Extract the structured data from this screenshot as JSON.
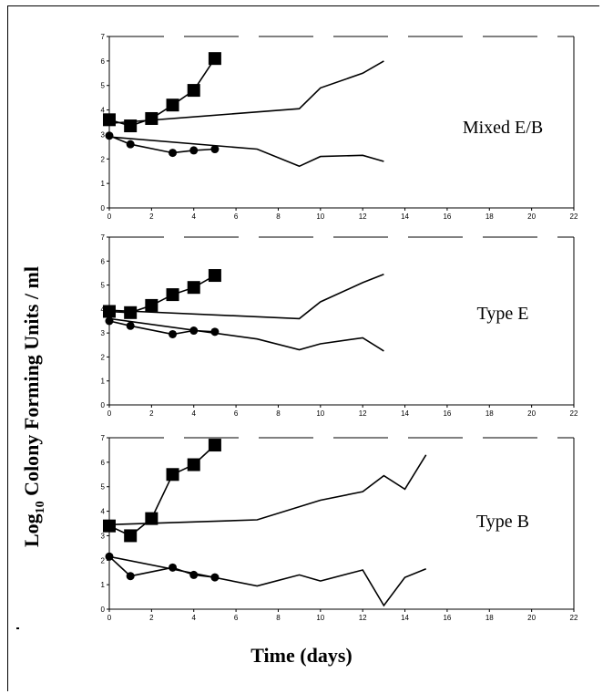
{
  "figure": {
    "y_label_prefix": "Log",
    "y_label_subscript": "10",
    "y_label_rest": " Colony Forming Units / ml",
    "x_label": "Time (days)"
  },
  "chart_data": [
    {
      "type": "line",
      "title": "Mixed E/B",
      "xlim": [
        0,
        22
      ],
      "ylim": [
        0,
        7
      ],
      "x_ticks": [
        0,
        2,
        4,
        6,
        8,
        10,
        12,
        14,
        16,
        18,
        20,
        22
      ],
      "y_ticks": [
        0,
        1,
        2,
        3,
        4,
        5,
        6,
        7
      ],
      "series": [
        {
          "marker": "square",
          "x": [
            0,
            1,
            2,
            3,
            4,
            5
          ],
          "y": [
            3.6,
            3.35,
            3.65,
            4.2,
            4.8,
            6.1
          ]
        },
        {
          "marker": "none",
          "x": [
            0,
            9,
            10,
            12,
            13
          ],
          "y": [
            3.45,
            4.05,
            4.9,
            5.5,
            6.0
          ]
        },
        {
          "marker": "circle",
          "x": [
            0,
            1,
            3,
            4,
            5
          ],
          "y": [
            2.95,
            2.6,
            2.25,
            2.35,
            2.4
          ]
        },
        {
          "marker": "none",
          "x": [
            0,
            7,
            9,
            10,
            12,
            13
          ],
          "y": [
            2.9,
            2.4,
            1.7,
            2.1,
            2.15,
            1.9
          ]
        }
      ]
    },
    {
      "type": "line",
      "title": "Type E",
      "xlim": [
        0,
        22
      ],
      "ylim": [
        0,
        7
      ],
      "x_ticks": [
        0,
        2,
        4,
        6,
        8,
        10,
        12,
        14,
        16,
        18,
        20,
        22
      ],
      "y_ticks": [
        0,
        1,
        2,
        3,
        4,
        5,
        6,
        7
      ],
      "series": [
        {
          "marker": "square",
          "x": [
            0,
            1,
            2,
            3,
            4,
            5
          ],
          "y": [
            3.9,
            3.85,
            4.15,
            4.6,
            4.9,
            5.4
          ]
        },
        {
          "marker": "none",
          "x": [
            0,
            9,
            10,
            12,
            13
          ],
          "y": [
            3.95,
            3.6,
            4.3,
            5.1,
            5.45
          ]
        },
        {
          "marker": "circle",
          "x": [
            0,
            1,
            3,
            4,
            5
          ],
          "y": [
            3.5,
            3.3,
            2.95,
            3.1,
            3.05
          ]
        },
        {
          "marker": "none",
          "x": [
            0,
            7,
            9,
            10,
            12,
            13
          ],
          "y": [
            3.6,
            2.75,
            2.3,
            2.55,
            2.8,
            2.25
          ]
        }
      ]
    },
    {
      "type": "line",
      "title": "Type B",
      "xlim": [
        0,
        22
      ],
      "ylim": [
        0,
        7
      ],
      "x_ticks": [
        0,
        2,
        4,
        6,
        8,
        10,
        12,
        14,
        16,
        18,
        20,
        22
      ],
      "y_ticks": [
        0,
        1,
        2,
        3,
        4,
        5,
        6,
        7
      ],
      "series": [
        {
          "marker": "square",
          "x": [
            0,
            1,
            2,
            3,
            4,
            5
          ],
          "y": [
            3.4,
            3.0,
            3.7,
            5.5,
            5.9,
            6.7
          ]
        },
        {
          "marker": "none",
          "x": [
            0,
            7,
            10,
            12,
            13,
            14,
            15
          ],
          "y": [
            3.45,
            3.65,
            4.45,
            4.8,
            5.45,
            4.9,
            6.3
          ]
        },
        {
          "marker": "circle",
          "x": [
            0,
            1,
            3,
            4,
            5
          ],
          "y": [
            2.15,
            1.35,
            1.7,
            1.4,
            1.3
          ]
        },
        {
          "marker": "none",
          "x": [
            0,
            7,
            9,
            10,
            12,
            13,
            14,
            15
          ],
          "y": [
            2.15,
            0.95,
            1.4,
            1.15,
            1.6,
            0.15,
            1.3,
            1.65
          ]
        }
      ]
    }
  ]
}
